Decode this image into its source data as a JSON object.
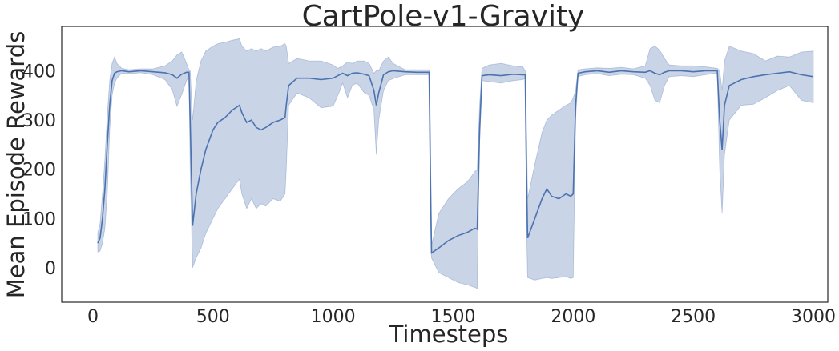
{
  "chart_data": {
    "type": "line",
    "title": "CartPole-v1-Gravity",
    "xlabel": "Timesteps",
    "ylabel": "Mean Episode Rewards",
    "xlim": [
      -130,
      3060
    ],
    "ylim": [
      -70,
      490
    ],
    "xticks": [
      0,
      500,
      1000,
      1500,
      2000,
      2500,
      3000
    ],
    "yticks": [
      0,
      100,
      200,
      300,
      400
    ],
    "grid": false,
    "colors": {
      "line": "#4c72b0",
      "band": "#4c72b0"
    },
    "series": [
      {
        "points": [
          [
            20,
            50,
            32,
            70
          ],
          [
            30,
            60,
            34,
            90
          ],
          [
            40,
            100,
            50,
            150
          ],
          [
            50,
            160,
            80,
            220
          ],
          [
            60,
            250,
            150,
            310
          ],
          [
            70,
            330,
            280,
            380
          ],
          [
            80,
            380,
            350,
            415
          ],
          [
            90,
            395,
            375,
            428
          ],
          [
            100,
            398,
            385,
            415
          ],
          [
            120,
            400,
            395,
            405
          ],
          [
            150,
            398,
            394,
            402
          ],
          [
            200,
            400,
            396,
            404
          ],
          [
            250,
            398,
            392,
            404
          ],
          [
            300,
            396,
            382,
            410
          ],
          [
            330,
            392,
            362,
            420
          ],
          [
            350,
            385,
            328,
            432
          ],
          [
            370,
            393,
            352,
            438
          ],
          [
            390,
            397,
            380,
            415
          ],
          [
            400,
            397,
            392,
            402
          ],
          [
            405,
            300,
            200,
            400
          ],
          [
            415,
            85,
            0,
            300
          ],
          [
            430,
            150,
            20,
            380
          ],
          [
            450,
            200,
            40,
            420
          ],
          [
            470,
            240,
            70,
            440
          ],
          [
            500,
            280,
            100,
            450
          ],
          [
            520,
            295,
            120,
            455
          ],
          [
            550,
            305,
            140,
            458
          ],
          [
            580,
            320,
            160,
            462
          ],
          [
            610,
            330,
            180,
            465
          ],
          [
            620,
            315,
            150,
            450
          ],
          [
            640,
            295,
            120,
            440
          ],
          [
            660,
            300,
            140,
            445
          ],
          [
            680,
            285,
            120,
            440
          ],
          [
            700,
            280,
            130,
            445
          ],
          [
            720,
            285,
            125,
            440
          ],
          [
            750,
            295,
            140,
            448
          ],
          [
            780,
            300,
            135,
            450
          ],
          [
            800,
            305,
            150,
            455
          ],
          [
            805,
            330,
            200,
            450
          ],
          [
            815,
            370,
            330,
            415
          ],
          [
            850,
            385,
            355,
            425
          ],
          [
            900,
            385,
            345,
            420
          ],
          [
            950,
            382,
            325,
            420
          ],
          [
            1000,
            385,
            328,
            412
          ],
          [
            1020,
            390,
            350,
            405
          ],
          [
            1040,
            395,
            375,
            410
          ],
          [
            1060,
            390,
            345,
            418
          ],
          [
            1080,
            395,
            370,
            415
          ],
          [
            1100,
            396,
            375,
            420
          ],
          [
            1130,
            393,
            355,
            420
          ],
          [
            1150,
            390,
            350,
            415
          ],
          [
            1170,
            360,
            320,
            395
          ],
          [
            1180,
            330,
            230,
            400
          ],
          [
            1190,
            355,
            300,
            400
          ],
          [
            1210,
            392,
            360,
            420
          ],
          [
            1230,
            398,
            380,
            428
          ],
          [
            1250,
            400,
            384,
            415
          ],
          [
            1300,
            398,
            392,
            402
          ],
          [
            1350,
            397,
            392,
            402
          ],
          [
            1400,
            397,
            392,
            402
          ],
          [
            1405,
            200,
            100,
            300
          ],
          [
            1410,
            30,
            20,
            45
          ],
          [
            1440,
            40,
            -10,
            110
          ],
          [
            1480,
            55,
            -20,
            140
          ],
          [
            1520,
            65,
            -30,
            160
          ],
          [
            1560,
            72,
            -35,
            175
          ],
          [
            1590,
            80,
            -40,
            195
          ],
          [
            1600,
            78,
            -42,
            200
          ],
          [
            1610,
            280,
            250,
            330
          ],
          [
            1620,
            390,
            380,
            405
          ],
          [
            1650,
            392,
            378,
            412
          ],
          [
            1700,
            390,
            375,
            415
          ],
          [
            1750,
            393,
            380,
            410
          ],
          [
            1790,
            392,
            382,
            408
          ],
          [
            1800,
            392,
            385,
            400
          ],
          [
            1805,
            200,
            100,
            300
          ],
          [
            1810,
            60,
            -20,
            140
          ],
          [
            1840,
            100,
            -25,
            210
          ],
          [
            1870,
            140,
            -22,
            275
          ],
          [
            1890,
            160,
            -20,
            300
          ],
          [
            1910,
            145,
            -22,
            310
          ],
          [
            1940,
            140,
            -20,
            320
          ],
          [
            1970,
            150,
            -18,
            330
          ],
          [
            1990,
            145,
            -22,
            335
          ],
          [
            2000,
            150,
            -20,
            345
          ],
          [
            2010,
            330,
            300,
            360
          ],
          [
            2020,
            395,
            388,
            402
          ],
          [
            2050,
            398,
            392,
            404
          ],
          [
            2100,
            400,
            394,
            406
          ],
          [
            2150,
            397,
            390,
            405
          ],
          [
            2200,
            400,
            393,
            407
          ],
          [
            2250,
            398,
            392,
            404
          ],
          [
            2300,
            397,
            385,
            410
          ],
          [
            2320,
            400,
            370,
            445
          ],
          [
            2340,
            395,
            340,
            450
          ],
          [
            2360,
            392,
            335,
            442
          ],
          [
            2380,
            397,
            370,
            425
          ],
          [
            2400,
            400,
            388,
            412
          ],
          [
            2450,
            400,
            390,
            410
          ],
          [
            2500,
            398,
            388,
            410
          ],
          [
            2550,
            400,
            392,
            408
          ],
          [
            2600,
            400,
            395,
            405
          ],
          [
            2610,
            300,
            200,
            400
          ],
          [
            2620,
            240,
            110,
            360
          ],
          [
            2630,
            330,
            230,
            420
          ],
          [
            2650,
            370,
            300,
            450
          ],
          [
            2700,
            382,
            330,
            440
          ],
          [
            2750,
            388,
            332,
            435
          ],
          [
            2800,
            392,
            345,
            420
          ],
          [
            2850,
            395,
            360,
            430
          ],
          [
            2900,
            398,
            370,
            428
          ],
          [
            2950,
            392,
            340,
            438
          ],
          [
            3000,
            388,
            335,
            440
          ]
        ]
      }
    ]
  }
}
